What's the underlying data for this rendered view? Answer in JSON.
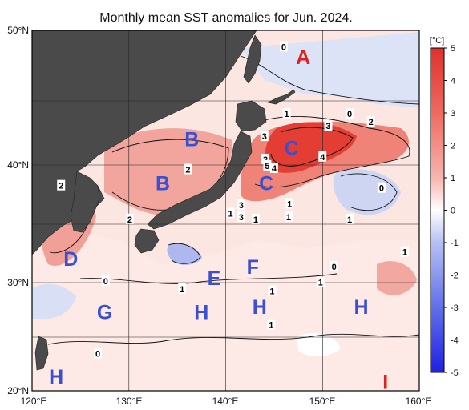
{
  "title": "Monthly mean SST anomalies for Jun. 2024.",
  "map": {
    "lon_range": [
      120,
      160
    ],
    "lat_range": [
      20,
      50
    ],
    "lon_ticks": [
      "120°E",
      "130°E",
      "140°E",
      "150°E",
      "160°E"
    ],
    "lat_ticks": [
      "50°N",
      "40°N",
      "30°N",
      "20°N"
    ],
    "gridlines": true
  },
  "colorbar": {
    "unit": "[°C]",
    "ticks": [
      "5",
      "4",
      "3",
      "2",
      "1",
      "0",
      "-1",
      "-2",
      "-3",
      "-4",
      "-5"
    ],
    "range": [
      -5,
      5
    ],
    "warm_color": "#e03030",
    "cold_color": "#2030e0"
  },
  "regions": [
    {
      "label": "A",
      "color": "#e02020",
      "lon": 148.0,
      "lat": 48.2
    },
    {
      "label": "B",
      "color": "#3a50d0",
      "lon": 136.5,
      "lat": 42.2
    },
    {
      "label": "B",
      "color": "#3a50d0",
      "lon": 133.5,
      "lat": 38.7
    },
    {
      "label": "C",
      "color": "#3a50d0",
      "lon": 146.8,
      "lat": 41.5
    },
    {
      "label": "C",
      "color": "#3a50d0",
      "lon": 144.2,
      "lat": 38.7
    },
    {
      "label": "D",
      "color": "#3a50d0",
      "lon": 124.0,
      "lat": 32.3
    },
    {
      "label": "E",
      "color": "#3a50d0",
      "lon": 138.8,
      "lat": 30.6
    },
    {
      "label": "F",
      "color": "#3a50d0",
      "lon": 142.8,
      "lat": 31.6
    },
    {
      "label": "G",
      "color": "#3a50d0",
      "lon": 127.5,
      "lat": 27.5
    },
    {
      "label": "H",
      "color": "#3a50d0",
      "lon": 137.5,
      "lat": 27.5
    },
    {
      "label": "H",
      "color": "#3a50d0",
      "lon": 143.5,
      "lat": 28.0
    },
    {
      "label": "H",
      "color": "#3a50d0",
      "lon": 154.0,
      "lat": 28.0
    },
    {
      "label": "H",
      "color": "#3a50d0",
      "lon": 122.5,
      "lat": 21.4
    },
    {
      "label": "I",
      "color": "#e02020",
      "lon": 156.5,
      "lat": 20.9
    }
  ],
  "contour_labels": [
    {
      "text": "0",
      "lon": 146.0,
      "lat": 48.9
    },
    {
      "text": "0",
      "lon": 152.8,
      "lat": 44.1
    },
    {
      "text": "2",
      "lon": 155.0,
      "lat": 43.5
    },
    {
      "text": "1",
      "lon": 146.3,
      "lat": 44.1
    },
    {
      "text": "3",
      "lon": 150.6,
      "lat": 43.2
    },
    {
      "text": "3",
      "lon": 144.0,
      "lat": 42.4
    },
    {
      "text": "3",
      "lon": 144.1,
      "lat": 40.6
    },
    {
      "text": "4",
      "lon": 150.0,
      "lat": 40.8
    },
    {
      "text": "5",
      "lon": 144.3,
      "lat": 40.1
    },
    {
      "text": "4",
      "lon": 145.0,
      "lat": 39.9
    },
    {
      "text": "2",
      "lon": 136.1,
      "lat": 39.8
    },
    {
      "text": "2",
      "lon": 123.0,
      "lat": 38.5
    },
    {
      "text": "0",
      "lon": 156.1,
      "lat": 38.3
    },
    {
      "text": "2",
      "lon": 130.1,
      "lat": 35.7
    },
    {
      "text": "1",
      "lon": 140.5,
      "lat": 36.2
    },
    {
      "text": "3",
      "lon": 141.6,
      "lat": 36.9
    },
    {
      "text": "3",
      "lon": 141.6,
      "lat": 35.9
    },
    {
      "text": "1",
      "lon": 143.1,
      "lat": 35.7
    },
    {
      "text": "1",
      "lon": 146.6,
      "lat": 37.0
    },
    {
      "text": "1",
      "lon": 146.5,
      "lat": 35.9
    },
    {
      "text": "1",
      "lon": 152.8,
      "lat": 35.7
    },
    {
      "text": "1",
      "lon": 158.5,
      "lat": 32.9
    },
    {
      "text": "0",
      "lon": 151.2,
      "lat": 31.6
    },
    {
      "text": "0",
      "lon": 127.6,
      "lat": 30.3
    },
    {
      "text": "1",
      "lon": 135.5,
      "lat": 29.6
    },
    {
      "text": "1",
      "lon": 149.8,
      "lat": 30.2
    },
    {
      "text": "1",
      "lon": 144.8,
      "lat": 29.4
    },
    {
      "text": "1",
      "lon": 144.7,
      "lat": 26.3
    },
    {
      "text": "0",
      "lon": 126.8,
      "lat": 23.6
    }
  ]
}
